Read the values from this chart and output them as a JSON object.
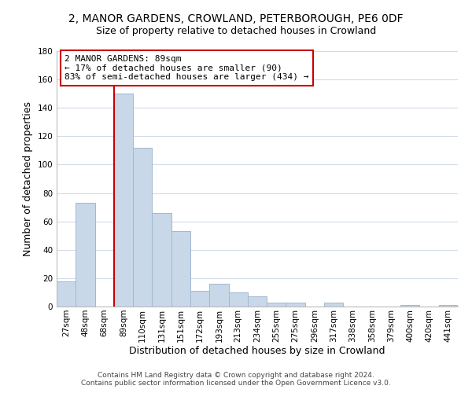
{
  "title": "2, MANOR GARDENS, CROWLAND, PETERBOROUGH, PE6 0DF",
  "subtitle": "Size of property relative to detached houses in Crowland",
  "xlabel": "Distribution of detached houses by size in Crowland",
  "ylabel": "Number of detached properties",
  "categories": [
    "27sqm",
    "48sqm",
    "68sqm",
    "89sqm",
    "110sqm",
    "131sqm",
    "151sqm",
    "172sqm",
    "193sqm",
    "213sqm",
    "234sqm",
    "255sqm",
    "275sqm",
    "296sqm",
    "317sqm",
    "338sqm",
    "358sqm",
    "379sqm",
    "400sqm",
    "420sqm",
    "441sqm"
  ],
  "values": [
    18,
    73,
    0,
    150,
    112,
    66,
    53,
    11,
    16,
    10,
    7,
    3,
    3,
    0,
    3,
    0,
    0,
    0,
    1,
    0,
    1
  ],
  "bar_color": "#c8d8e8",
  "bar_edge_color": "#a0b8d0",
  "vline_color": "#cc0000",
  "vline_bar_index": 3,
  "annotation_text_line1": "2 MANOR GARDENS: 89sqm",
  "annotation_text_line2": "← 17% of detached houses are smaller (90)",
  "annotation_text_line3": "83% of semi-detached houses are larger (434) →",
  "annotation_box_color": "#ffffff",
  "annotation_box_edge_color": "#cc0000",
  "ylim": [
    0,
    180
  ],
  "yticks": [
    0,
    20,
    40,
    60,
    80,
    100,
    120,
    140,
    160,
    180
  ],
  "footer_line1": "Contains HM Land Registry data © Crown copyright and database right 2024.",
  "footer_line2": "Contains public sector information licensed under the Open Government Licence v3.0.",
  "background_color": "#ffffff",
  "grid_color": "#d0dce8",
  "title_fontsize": 10,
  "subtitle_fontsize": 9,
  "xlabel_fontsize": 9,
  "ylabel_fontsize": 9,
  "tick_fontsize": 7.5,
  "annotation_fontsize": 8,
  "footer_fontsize": 6.5
}
